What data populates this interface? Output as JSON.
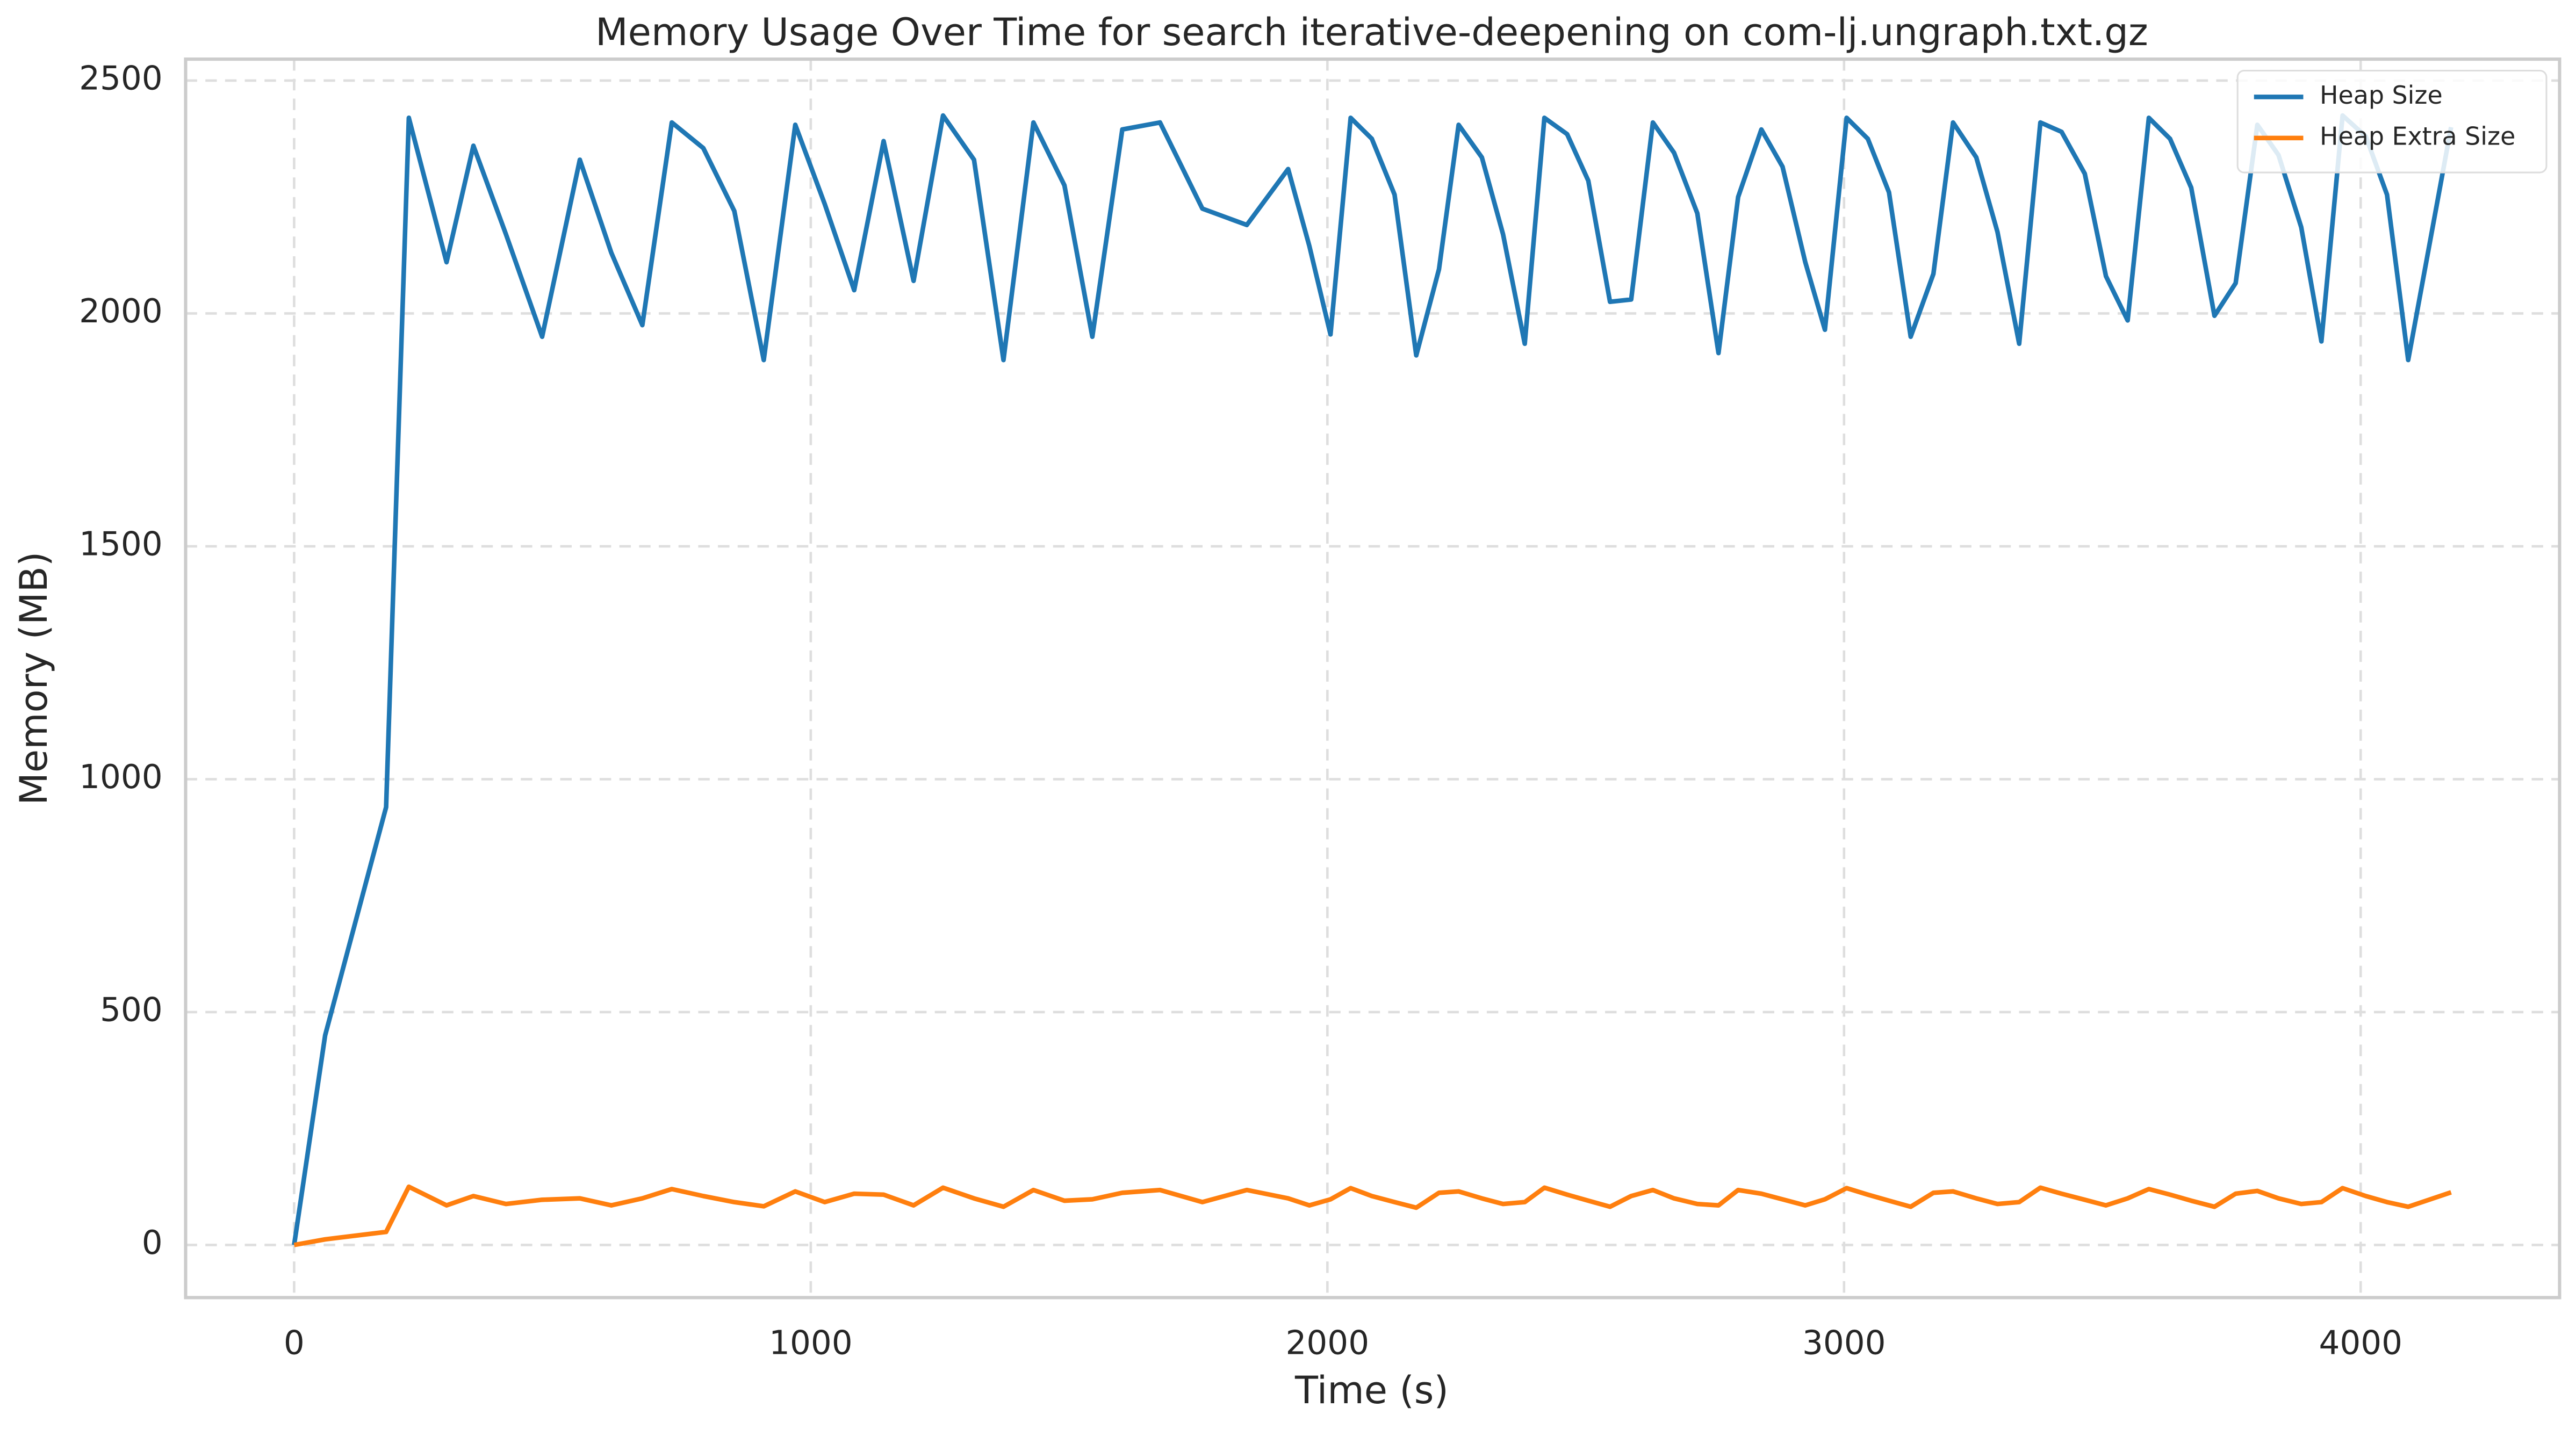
{
  "chart_data": {
    "type": "line",
    "title": "Memory Usage Over Time for search iterative-deepening on com-lj.ungraph.txt.gz",
    "xlabel": "Time (s)",
    "ylabel": "Memory (MB)",
    "x": [
      0,
      60,
      178,
      222,
      295,
      347,
      410,
      480,
      553,
      614,
      674,
      731,
      792,
      852,
      909,
      970,
      1027,
      1084,
      1141,
      1199,
      1256,
      1316,
      1373,
      1431,
      1491,
      1545,
      1603,
      1676,
      1758,
      1844,
      1924,
      1965,
      2006,
      2045,
      2086,
      2130,
      2172,
      2216,
      2254,
      2299,
      2340,
      2382,
      2420,
      2464,
      2505,
      2547,
      2588,
      2630,
      2671,
      2716,
      2757,
      2795,
      2840,
      2881,
      2925,
      2963,
      3005,
      3046,
      3087,
      3129,
      3173,
      3211,
      3256,
      3297,
      3339,
      3380,
      3421,
      3466,
      3507,
      3549,
      3590,
      3631,
      3672,
      3717,
      3758,
      3800,
      3841,
      3885,
      3924,
      3965,
      4010,
      4051,
      4092,
      4175
    ],
    "series": [
      {
        "name": "Heap Size",
        "color": "#1f77b4",
        "values": [
          0,
          450,
          940,
          2420,
          2110,
          2360,
          2170,
          1950,
          2330,
          2130,
          1975,
          2410,
          2355,
          2220,
          1900,
          2405,
          2235,
          2050,
          2370,
          2070,
          2425,
          2330,
          1900,
          2410,
          2275,
          1950,
          2395,
          2410,
          2225,
          2190,
          2310,
          2145,
          1955,
          2420,
          2375,
          2255,
          1910,
          2095,
          2405,
          2335,
          2170,
          1935,
          2420,
          2385,
          2285,
          2025,
          2030,
          2410,
          2345,
          2215,
          1915,
          2250,
          2395,
          2315,
          2110,
          1965,
          2420,
          2375,
          2260,
          1950,
          2085,
          2410,
          2335,
          2175,
          1935,
          2410,
          2390,
          2300,
          2080,
          1985,
          2420,
          2375,
          2270,
          1995,
          2065,
          2405,
          2340,
          2185,
          1940,
          2425,
          2380,
          2255,
          1900,
          2400
        ]
      },
      {
        "name": "Heap Extra Size",
        "color": "#ff7f0e",
        "values": [
          0,
          12,
          28,
          125,
          85,
          105,
          88,
          97,
          100,
          85,
          100,
          120,
          105,
          92,
          83,
          115,
          92,
          110,
          108,
          85,
          123,
          100,
          82,
          118,
          95,
          98,
          112,
          118,
          92,
          118,
          100,
          85,
          98,
          122,
          105,
          92,
          80,
          112,
          115,
          100,
          88,
          92,
          123,
          108,
          95,
          82,
          105,
          118,
          100,
          88,
          85,
          118,
          110,
          98,
          85,
          98,
          122,
          108,
          95,
          82,
          112,
          115,
          100,
          88,
          92,
          123,
          110,
          97,
          85,
          100,
          120,
          108,
          95,
          82,
          110,
          116,
          100,
          88,
          92,
          122,
          105,
          92,
          82,
          113
        ]
      }
    ],
    "xlim": [
      -210,
      4385
    ],
    "ylim": [
      -113,
      2546
    ],
    "xticks": [
      0,
      1000,
      2000,
      3000,
      4000
    ],
    "yticks": [
      0,
      500,
      1000,
      1500,
      2000,
      2500
    ],
    "grid": true,
    "legend": "upper right"
  }
}
